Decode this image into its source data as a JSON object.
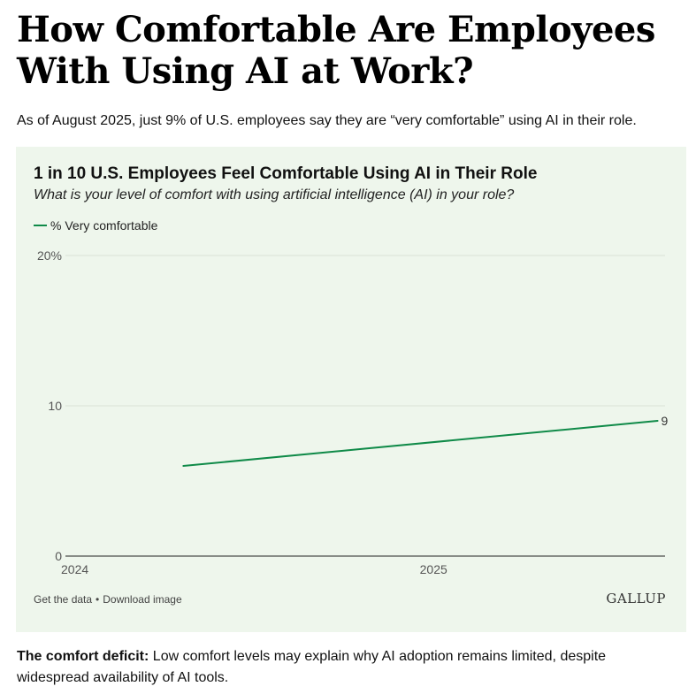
{
  "headline": {
    "line1": "How Comfortable Are Employees",
    "line2": "With Using AI at Work?"
  },
  "subhead": "As of August 2025, just 9% of U.S. employees say they are “very comfortable” using AI in their role.",
  "chart_data": {
    "type": "line",
    "title": "1 in 10 U.S. Employees Feel Comfortable Using AI in Their Role",
    "subtitle": "What is your level of comfort with using artificial intelligence (AI) in your role?",
    "series": [
      {
        "name": "% Very comfortable",
        "color": "#0f8a48",
        "x": [
          2024.33,
          2025.6
        ],
        "values": [
          6,
          9
        ],
        "end_label": "9"
      }
    ],
    "xlim": [
      2024.0,
      2025.62
    ],
    "ylim": [
      0,
      20
    ],
    "y_ticks": [
      {
        "value": 20,
        "label": "20%"
      },
      {
        "value": 10,
        "label": "10"
      },
      {
        "value": 0,
        "label": "0"
      }
    ],
    "x_ticks": [
      {
        "value": 2024,
        "label": "2024"
      },
      {
        "value": 2025,
        "label": "2025"
      }
    ],
    "legend_position": "top-left",
    "grid": true
  },
  "footer": {
    "get_data": "Get the data",
    "separator": "•",
    "download": "Download image",
    "brand": "GALLUP"
  },
  "bottom": {
    "lead": "The comfort deficit:",
    "text": " Low comfort levels may explain why AI adoption remains limited, despite widespread availability of AI tools."
  }
}
